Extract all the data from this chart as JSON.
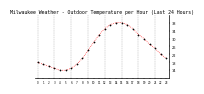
{
  "title": "Milwaukee Weather - Outdoor Temperature per Hour (Last 24 Hours)",
  "x": [
    0,
    1,
    2,
    3,
    4,
    5,
    6,
    7,
    8,
    9,
    10,
    11,
    12,
    13,
    14,
    15,
    16,
    17,
    18,
    19,
    20,
    21,
    22,
    23
  ],
  "y": [
    18,
    17,
    16,
    15,
    14,
    14,
    15,
    17,
    20,
    24,
    28,
    32,
    35,
    37,
    38,
    38,
    37,
    35,
    32,
    30,
    27,
    25,
    22,
    20
  ],
  "line_color": "#ff0000",
  "marker_color": "#000000",
  "bg_color": "#ffffff",
  "grid_color": "#aaaaaa",
  "title_fontsize": 3.5,
  "ylim": [
    10,
    42
  ],
  "xlim": [
    -0.5,
    23.5
  ],
  "yticks": [
    14,
    18,
    22,
    26,
    30,
    34,
    38
  ],
  "xticks": [
    0,
    1,
    2,
    3,
    4,
    5,
    6,
    7,
    8,
    9,
    10,
    11,
    12,
    13,
    14,
    15,
    16,
    17,
    18,
    19,
    20,
    21,
    22,
    23
  ],
  "vgrid_positions": [
    0,
    3,
    6,
    9,
    12,
    15,
    18,
    21
  ]
}
